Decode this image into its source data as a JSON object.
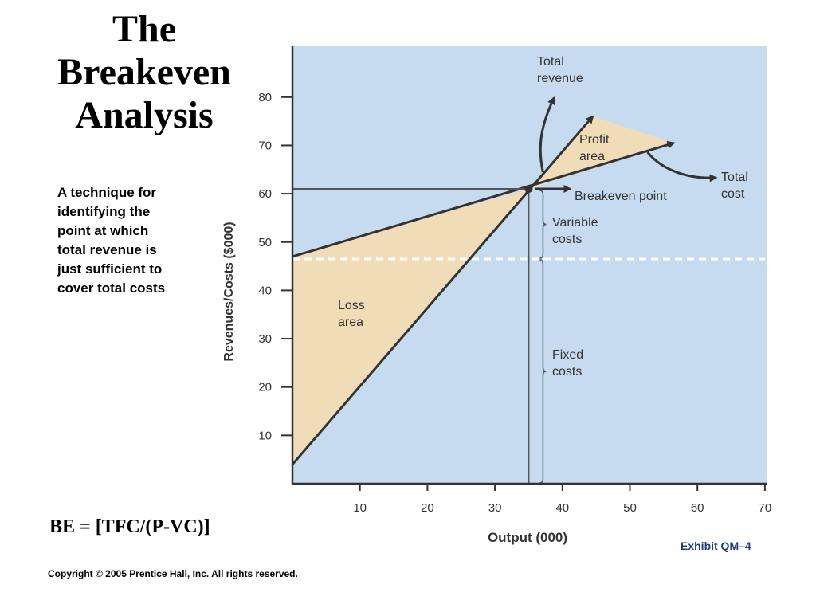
{
  "slide": {
    "title": "The Breakeven Analysis",
    "definition": "A technique for identifying the point at which total revenue is just sufficient to cover total costs",
    "formula": "BE = [TFC/(P-VC)]",
    "exhibit": "Exhibit QM–4",
    "copyright": "Copyright © 2005 Prentice Hall, Inc. All rights reserved."
  },
  "chart_data": {
    "type": "line",
    "xlabel": "Output (000)",
    "ylabel": "Revenues/Costs ($000)",
    "xlim": [
      0,
      70
    ],
    "ylim": [
      0,
      90
    ],
    "x_ticks": [
      10,
      20,
      30,
      40,
      50,
      60,
      70
    ],
    "y_ticks": [
      10,
      20,
      30,
      40,
      50,
      60,
      70,
      80
    ],
    "grid": false,
    "series": [
      {
        "name": "Total revenue",
        "x": [
          0,
          44.5
        ],
        "y": [
          4,
          76
        ],
        "color": "#333333"
      },
      {
        "name": "Total cost",
        "x": [
          0,
          56.5
        ],
        "y": [
          47,
          70.5
        ],
        "color": "#333333"
      },
      {
        "name": "Fixed costs",
        "x": [
          0,
          70
        ],
        "y": [
          46.5,
          46.5
        ],
        "style": "dashed",
        "color": "#ffffff"
      }
    ],
    "breakeven_point": {
      "x": 35,
      "y": 61
    },
    "annotations": {
      "total_revenue": "Total revenue",
      "total_cost": "Total cost",
      "profit_area": "Profit area",
      "loss_area": "Loss area",
      "breakeven_point": "Breakeven point",
      "variable_costs": "Variable costs",
      "fixed_costs": "Fixed costs"
    },
    "colors": {
      "plot_background": "#c6dbf0",
      "area_fill": "#f0dcb6",
      "line": "#333333"
    }
  }
}
